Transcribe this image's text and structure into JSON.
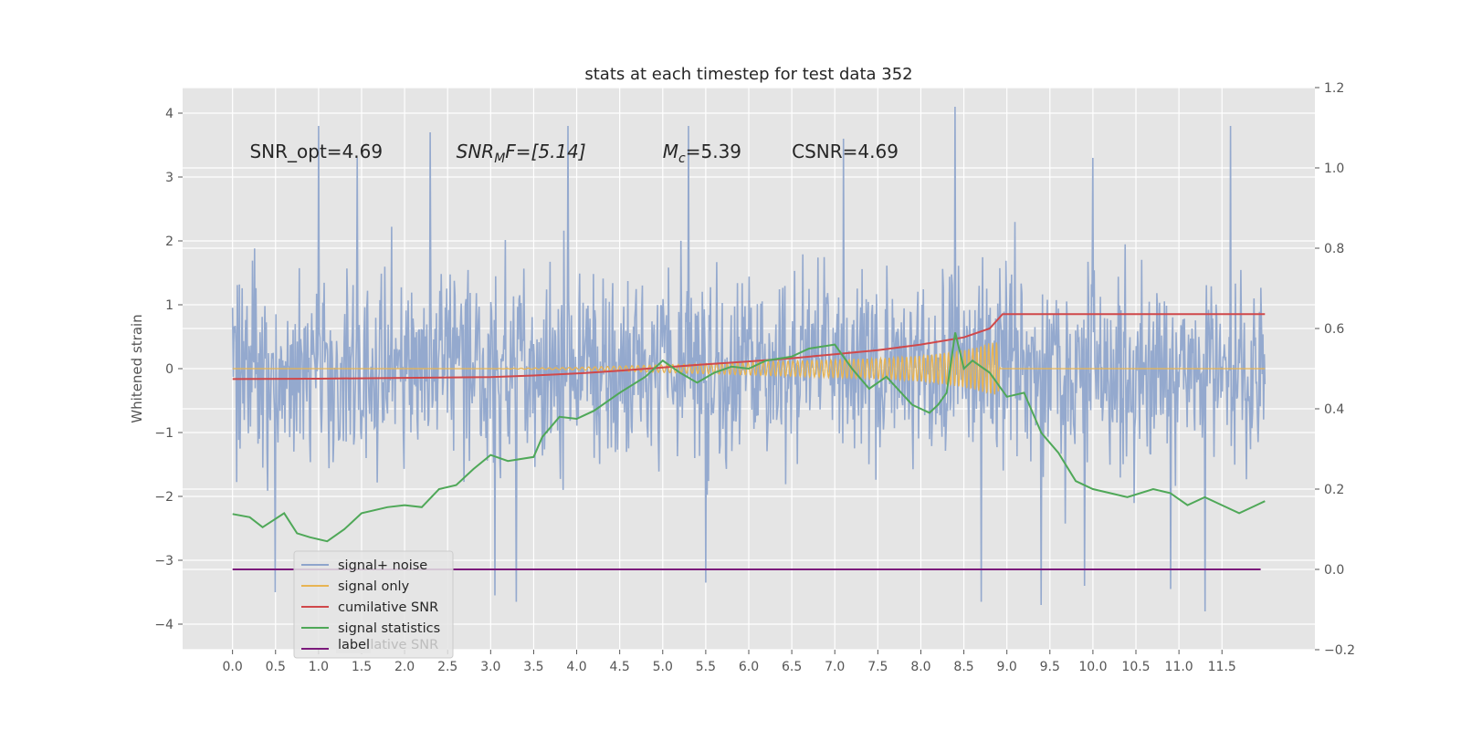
{
  "chart_data": {
    "type": "line",
    "title": "stats at each timestep for test data 352",
    "ylabel": "Whitened strain",
    "xlabel": "",
    "xlim": [
      -0.58,
      12.58
    ],
    "ylim": [
      -4.4,
      4.4
    ],
    "y2lim": [
      -0.2,
      1.2
    ],
    "grid": true,
    "legend_position": "lower-left",
    "xticks": [
      "0.0",
      "0.5",
      "1.0",
      "1.5",
      "2.0",
      "2.5",
      "3.0",
      "3.5",
      "4.0",
      "4.5",
      "5.0",
      "5.5",
      "6.0",
      "6.5",
      "7.0",
      "7.5",
      "8.0",
      "8.5",
      "9.0",
      "9.5",
      "10.0",
      "10.5",
      "11.0",
      "11.5"
    ],
    "yticks": [
      "4",
      "3",
      "2",
      "1",
      "0",
      "−1",
      "−2",
      "−3",
      "−4"
    ],
    "y2ticks": [
      "1.2",
      "1.0",
      "0.8",
      "0.6",
      "0.4",
      "0.2",
      "0.0",
      "−0.2"
    ],
    "annotations": [
      {
        "plain": "SNR_opt=4.69",
        "x": 0.2,
        "y": 3.3
      },
      {
        "base": "SNR",
        "sub": "M",
        "suffix": "F=[5.14]",
        "x": 2.6,
        "y": 3.3
      },
      {
        "base": "M",
        "sub": "c",
        "suffix": "=5.39",
        "x": 5.0,
        "y": 3.3
      },
      {
        "plain": "CSNR=4.69",
        "x": 6.5,
        "y": 3.3
      }
    ],
    "legend_hidden_text": "cumilative SNR",
    "series": [
      {
        "name": "signal+ noise",
        "color": "#8fa5cc",
        "axis": "left",
        "x_range": [
          0.0,
          12.0
        ],
        "typical_range": [
          -1.8,
          1.8
        ],
        "peaks": [
          [
            1.0,
            3.8
          ],
          [
            2.3,
            3.7
          ],
          [
            3.9,
            3.8
          ],
          [
            5.3,
            3.8
          ],
          [
            8.4,
            4.1
          ],
          [
            11.6,
            3.8
          ],
          [
            1.45,
            3.3
          ],
          [
            7.1,
            3.6
          ],
          [
            10.0,
            3.3
          ]
        ],
        "troughs": [
          [
            0.5,
            -3.5
          ],
          [
            3.05,
            -3.55
          ],
          [
            3.3,
            -3.65
          ],
          [
            5.5,
            -3.35
          ],
          [
            8.7,
            -3.65
          ],
          [
            9.4,
            -3.7
          ],
          [
            10.9,
            -3.45
          ],
          [
            11.3,
            -3.8
          ],
          [
            9.9,
            -3.4
          ]
        ]
      },
      {
        "name": "signal only",
        "color": "#e8b452",
        "axis": "left",
        "points": [
          [
            0,
            0
          ],
          [
            3,
            0
          ],
          [
            3.5,
            0.01
          ],
          [
            4,
            0.02
          ],
          [
            4.5,
            0.04
          ],
          [
            5,
            0.06
          ],
          [
            5.5,
            0.08
          ],
          [
            6,
            0.1
          ],
          [
            6.5,
            0.12
          ],
          [
            7,
            0.14
          ],
          [
            7.5,
            0.16
          ],
          [
            8,
            0.2
          ],
          [
            8.3,
            0.25
          ],
          [
            8.6,
            0.32
          ],
          [
            8.8,
            0.4
          ],
          [
            8.9,
            0.42
          ],
          [
            8.92,
            0.0
          ],
          [
            12,
            0
          ]
        ]
      },
      {
        "name": "cumilative SNR",
        "color": "#d0484a",
        "axis": "right",
        "points": [
          [
            0,
            0.474
          ],
          [
            1,
            0.475
          ],
          [
            2,
            0.477
          ],
          [
            3,
            0.479
          ],
          [
            3.5,
            0.483
          ],
          [
            4,
            0.488
          ],
          [
            4.5,
            0.495
          ],
          [
            5,
            0.503
          ],
          [
            5.5,
            0.511
          ],
          [
            6,
            0.518
          ],
          [
            6.5,
            0.526
          ],
          [
            7,
            0.536
          ],
          [
            7.5,
            0.546
          ],
          [
            8,
            0.56
          ],
          [
            8.5,
            0.578
          ],
          [
            8.8,
            0.6
          ],
          [
            8.95,
            0.636
          ],
          [
            12,
            0.636
          ]
        ]
      },
      {
        "name": "signal statistics",
        "color": "#4fa858",
        "axis": "right",
        "points": [
          [
            0,
            0.138
          ],
          [
            0.2,
            0.13
          ],
          [
            0.35,
            0.105
          ],
          [
            0.6,
            0.14
          ],
          [
            0.75,
            0.09
          ],
          [
            0.9,
            0.08
          ],
          [
            1.1,
            0.07
          ],
          [
            1.3,
            0.1
          ],
          [
            1.5,
            0.14
          ],
          [
            1.8,
            0.155
          ],
          [
            2.0,
            0.16
          ],
          [
            2.2,
            0.155
          ],
          [
            2.4,
            0.2
          ],
          [
            2.6,
            0.21
          ],
          [
            2.8,
            0.25
          ],
          [
            3.0,
            0.285
          ],
          [
            3.2,
            0.27
          ],
          [
            3.5,
            0.28
          ],
          [
            3.6,
            0.33
          ],
          [
            3.8,
            0.38
          ],
          [
            4.0,
            0.375
          ],
          [
            4.2,
            0.395
          ],
          [
            4.5,
            0.44
          ],
          [
            4.8,
            0.48
          ],
          [
            5.0,
            0.52
          ],
          [
            5.2,
            0.49
          ],
          [
            5.4,
            0.465
          ],
          [
            5.6,
            0.49
          ],
          [
            5.8,
            0.505
          ],
          [
            6.0,
            0.5
          ],
          [
            6.2,
            0.52
          ],
          [
            6.5,
            0.53
          ],
          [
            6.7,
            0.55
          ],
          [
            7.0,
            0.56
          ],
          [
            7.2,
            0.5
          ],
          [
            7.4,
            0.45
          ],
          [
            7.6,
            0.48
          ],
          [
            7.9,
            0.41
          ],
          [
            8.1,
            0.39
          ],
          [
            8.2,
            0.41
          ],
          [
            8.3,
            0.44
          ],
          [
            8.4,
            0.59
          ],
          [
            8.5,
            0.5
          ],
          [
            8.6,
            0.52
          ],
          [
            8.8,
            0.49
          ],
          [
            9.0,
            0.43
          ],
          [
            9.2,
            0.44
          ],
          [
            9.4,
            0.34
          ],
          [
            9.6,
            0.29
          ],
          [
            9.8,
            0.22
          ],
          [
            10.0,
            0.2
          ],
          [
            10.2,
            0.19
          ],
          [
            10.4,
            0.18
          ],
          [
            10.7,
            0.2
          ],
          [
            10.9,
            0.19
          ],
          [
            11.1,
            0.16
          ],
          [
            11.3,
            0.18
          ],
          [
            11.5,
            0.16
          ],
          [
            11.7,
            0.14
          ],
          [
            11.9,
            0.16
          ],
          [
            12.0,
            0.17
          ]
        ]
      },
      {
        "name": "label",
        "color": "#7b1a7b",
        "axis": "right",
        "points": [
          [
            0,
            0.0
          ],
          [
            11.95,
            0.0
          ]
        ]
      }
    ]
  }
}
